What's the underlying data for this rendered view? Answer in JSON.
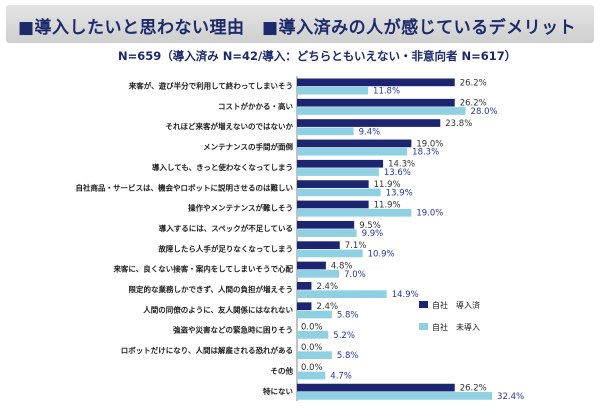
{
  "header": {
    "title": "■導入したいと思わない理由　■導入済みの人が感じているデメリット",
    "subtitle": "N=659（導入済み N=42/導入：どちらともいえない・非意向者 N=617）"
  },
  "colors": {
    "adopted": "#1c2570",
    "not_adopted": "#8fd0e3",
    "adopted_text": "#333333",
    "not_adopted_text": "#2536a8"
  },
  "chart_data": {
    "type": "bar",
    "orientation": "horizontal",
    "title": "導入したいと思わない理由　導入済みの人が感じているデメリット",
    "categories": [
      "来客が、遊び半分で利用して終わってしまいそう",
      "コストがかかる・高い",
      "それほど来客が増えないのではないか",
      "メンテナンスの手間が面倒",
      "導入しても、きっと使わなくなってしまう",
      "自社商品・サービスは、機会やロボットに説明させるのは難しい",
      "操作やメンテナンスが難しそう",
      "導入するには、スペックが不足している",
      "故障したら人手が足りなくなってしまう",
      "来客に、良くない接客・案内をしてしまいそうで心配",
      "限定的な業務しかできず、人間の負担が増えそう",
      "人間の同僚のように、友人関係にはなれない",
      "強盗や災害などの緊急時に困りそう",
      "ロボットだけになり、人間は解雇される恐れがある",
      "その他",
      "特にない"
    ],
    "series": [
      {
        "name": "自社　導入済",
        "values": [
          26.2,
          26.2,
          23.8,
          19.0,
          14.3,
          11.9,
          11.9,
          9.5,
          7.1,
          4.8,
          2.4,
          2.4,
          0.0,
          0.0,
          0.0,
          26.2
        ]
      },
      {
        "name": "自社　未導入",
        "values": [
          11.8,
          28.0,
          9.4,
          18.3,
          13.6,
          13.9,
          19.0,
          9.9,
          10.9,
          7.0,
          14.9,
          5.8,
          5.2,
          5.8,
          4.7,
          32.4
        ]
      }
    ],
    "xlim": [
      0,
      35
    ],
    "value_suffix": "%",
    "legend_position": "right"
  }
}
